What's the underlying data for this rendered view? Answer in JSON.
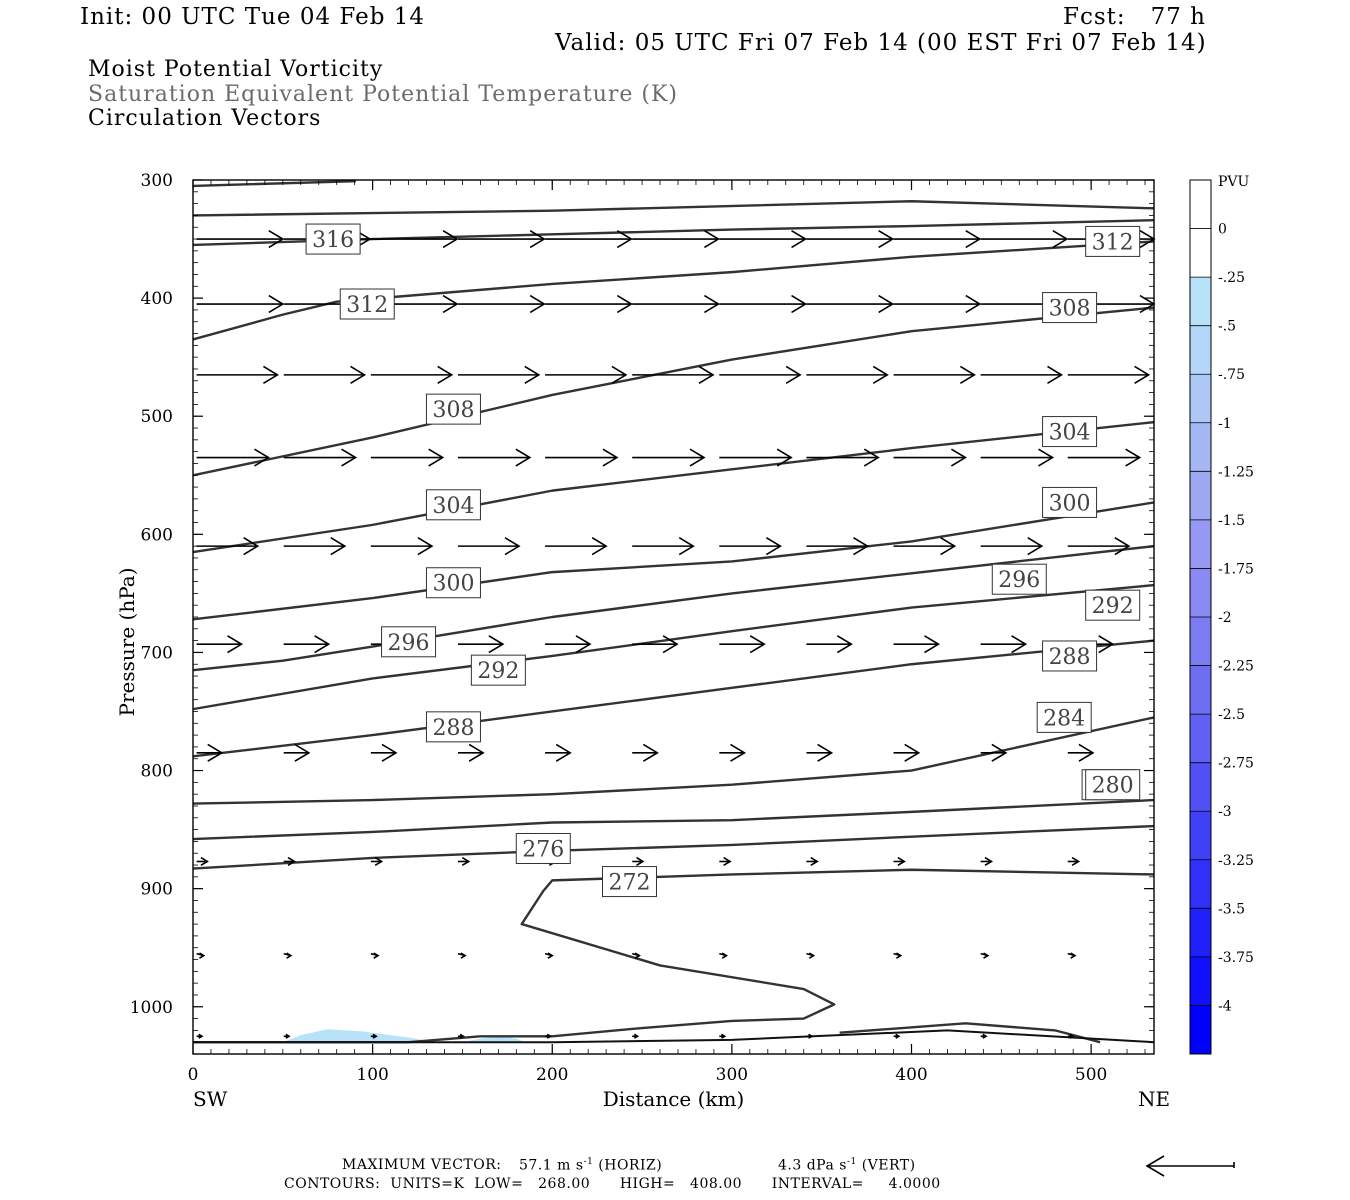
{
  "header": {
    "init": "Init: 00 UTC Tue 04 Feb 14",
    "fcst": "Fcst:   77 h",
    "valid": "Valid: 05 UTC Fri 07 Feb 14 (00 EST Fri 07 Feb 14)"
  },
  "fields": [
    "Moist Potential Vorticity",
    "Saturation Equivalent Potential Temperature (K)",
    "Circulation Vectors"
  ],
  "chart_data": {
    "type": "contour cross-section",
    "xlabel": "Distance (km)",
    "ylabel": "Pressure (hPa)",
    "xlim": [
      0,
      535
    ],
    "ylim": [
      1040,
      300
    ],
    "x_ticks": [
      0,
      100,
      200,
      300,
      400,
      500
    ],
    "y_ticks": [
      300,
      400,
      500,
      600,
      700,
      800,
      900,
      1000
    ],
    "end_labels": {
      "left": "SW",
      "right": "NE"
    },
    "contours": [
      {
        "level": 316,
        "label_at": [
          78,
          350
        ],
        "points": [
          [
            0,
            355
          ],
          [
            100,
            350
          ],
          [
            200,
            346
          ],
          [
            300,
            342
          ],
          [
            400,
            339
          ],
          [
            535,
            334
          ]
        ]
      },
      {
        "level": 312,
        "label_at": [
          97,
          405
        ],
        "points": [
          [
            0,
            435
          ],
          [
            50,
            414
          ],
          [
            80,
            403
          ],
          [
            200,
            388
          ],
          [
            300,
            378
          ],
          [
            400,
            365
          ],
          [
            535,
            352
          ]
        ]
      },
      {
        "level": 308,
        "label_at": [
          145,
          494
        ],
        "points": [
          [
            0,
            550
          ],
          [
            100,
            518
          ],
          [
            200,
            482
          ],
          [
            300,
            452
          ],
          [
            400,
            428
          ],
          [
            535,
            408
          ]
        ]
      },
      {
        "level": 304,
        "label_at": [
          145,
          575
        ],
        "points": [
          [
            0,
            615
          ],
          [
            100,
            592
          ],
          [
            200,
            563
          ],
          [
            300,
            545
          ],
          [
            400,
            527
          ],
          [
            535,
            505
          ]
        ]
      },
      {
        "level": 300,
        "label_at": [
          145,
          641
        ],
        "points": [
          [
            0,
            672
          ],
          [
            100,
            654
          ],
          [
            200,
            632
          ],
          [
            300,
            623
          ],
          [
            400,
            606
          ],
          [
            535,
            573
          ]
        ]
      },
      {
        "level": 296,
        "label_at": [
          120,
          691
        ],
        "points": [
          [
            0,
            715
          ],
          [
            50,
            707
          ],
          [
            100,
            695
          ],
          [
            200,
            670
          ],
          [
            300,
            650
          ],
          [
            400,
            633
          ],
          [
            535,
            610
          ]
        ]
      },
      {
        "level": 292,
        "label_at": [
          170,
          715
        ],
        "points": [
          [
            0,
            748
          ],
          [
            100,
            722
          ],
          [
            200,
            703
          ],
          [
            300,
            682
          ],
          [
            400,
            662
          ],
          [
            535,
            643
          ]
        ]
      },
      {
        "level": 288,
        "label_at": [
          145,
          763
        ],
        "points": [
          [
            0,
            788
          ],
          [
            100,
            770
          ],
          [
            200,
            750
          ],
          [
            300,
            730
          ],
          [
            400,
            710
          ],
          [
            535,
            690
          ]
        ]
      },
      {
        "level": 284,
        "label_at": [
          485,
          755
        ],
        "points": [
          [
            0,
            828
          ],
          [
            100,
            825
          ],
          [
            200,
            820
          ],
          [
            300,
            812
          ],
          [
            400,
            800
          ],
          [
            535,
            755
          ]
        ]
      },
      {
        "level": 280,
        "label_at": [
          510,
          812
        ],
        "points": [
          [
            0,
            858
          ],
          [
            100,
            852
          ],
          [
            200,
            844
          ],
          [
            300,
            842
          ],
          [
            400,
            835
          ],
          [
            535,
            825
          ]
        ]
      },
      {
        "level": 276,
        "label_at": [
          195,
          866
        ],
        "points": [
          [
            0,
            883
          ],
          [
            100,
            874
          ],
          [
            200,
            868
          ],
          [
            300,
            863
          ],
          [
            400,
            856
          ],
          [
            535,
            847
          ]
        ]
      },
      {
        "level": 272,
        "label_at": [
          243,
          894
        ],
        "points": [
          [
            535,
            888
          ],
          [
            400,
            884
          ],
          [
            300,
            888
          ],
          [
            200,
            893
          ],
          [
            195,
            902
          ],
          [
            183,
            930
          ],
          [
            260,
            965
          ],
          [
            340,
            985
          ],
          [
            357,
            998
          ],
          [
            340,
            1010
          ],
          [
            300,
            1012
          ],
          [
            250,
            1018
          ],
          [
            200,
            1025
          ],
          [
            160,
            1025
          ],
          [
            120,
            1030
          ],
          [
            60,
            1030
          ],
          [
            20,
            1030
          ],
          [
            0,
            1030
          ]
        ]
      }
    ],
    "contour_low": 268.0,
    "contour_high": 408.0,
    "contour_interval": 4.0,
    "pv_colorbar": {
      "units": "PVU",
      "levels": [
        "0",
        "-.25",
        "-.5",
        "-.75",
        "-1",
        "-1.25",
        "-1.5",
        "-1.75",
        "-2",
        "-2.25",
        "-2.5",
        "-2.75",
        "-3",
        "-3.25",
        "-3.5",
        "-3.75",
        "-4"
      ],
      "colors": [
        "#ffffff",
        "#ffffff",
        "#b8e2f8",
        "#b4d6f8",
        "#aec8f6",
        "#a6b8f4",
        "#9ea8f2",
        "#9698f2",
        "#8a8af2",
        "#7c7cf2",
        "#6e6ef2",
        "#6060f4",
        "#5050f4",
        "#4040f6",
        "#3030f8",
        "#2020fa",
        "#1010fc",
        "#0000ff"
      ]
    },
    "vector_rows_hPa": [
      300,
      350,
      405,
      465,
      535,
      610,
      693,
      785,
      877,
      955,
      1025
    ],
    "vector_length_km_equiv": [
      0,
      48,
      48,
      45,
      40,
      34,
      25,
      14,
      6,
      4,
      3
    ],
    "max_vector": {
      "horiz": "57.1 m s",
      "vert": "4.3 dPa s"
    }
  },
  "footer": {
    "max_vector_label": "MAXIMUM VECTOR:",
    "horiz": "57.1 m s",
    "horiz_unit": "(HORIZ)",
    "vert": "4.3 dPa s",
    "vert_unit": "(VERT)",
    "contours_line": "CONTOURS:  UNITS=K  LOW=   268.00      HIGH=   408.00      INTERVAL=     4.0000"
  }
}
